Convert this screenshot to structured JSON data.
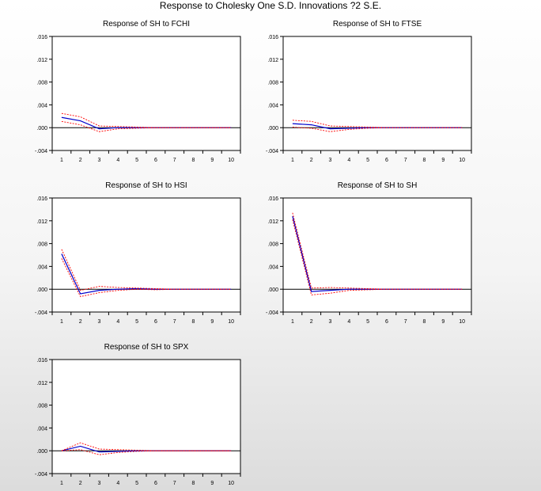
{
  "title": "Response to Cholesky One S.D. Innovations ?2 S.E.",
  "colors": {
    "response": "#0000cc",
    "band": "#ff0000",
    "zero": "#000000"
  },
  "chart_data": [
    {
      "type": "line",
      "title": "Response of SH to FCHI",
      "x": [
        1,
        2,
        3,
        4,
        5,
        6,
        7,
        8,
        9,
        10
      ],
      "ylim": [
        -0.004,
        0.016
      ],
      "yticks": [
        ".016",
        ".012",
        ".008",
        ".004",
        ".000",
        "-.004"
      ],
      "xticks": [
        "1",
        "2",
        "3",
        "4",
        "5",
        "6",
        "7",
        "8",
        "9",
        "10"
      ],
      "series": [
        {
          "role": "response",
          "values": [
            0.0018,
            0.0012,
            -0.0002,
            0.0,
            0.0,
            0.0,
            0.0,
            0.0,
            0.0,
            0.0
          ]
        },
        {
          "role": "upper",
          "values": [
            0.0025,
            0.0019,
            0.0003,
            0.0002,
            0.0001,
            0.0,
            0.0,
            0.0,
            0.0,
            0.0
          ]
        },
        {
          "role": "lower",
          "values": [
            0.0011,
            0.0005,
            -0.0007,
            -0.0002,
            -0.0001,
            0.0,
            0.0,
            0.0,
            0.0,
            0.0
          ]
        }
      ]
    },
    {
      "type": "line",
      "title": "Response of SH to FTSE",
      "x": [
        1,
        2,
        3,
        4,
        5,
        6,
        7,
        8,
        9,
        10
      ],
      "ylim": [
        -0.004,
        0.016
      ],
      "yticks": [
        ".016",
        ".012",
        ".008",
        ".004",
        ".000",
        "-.004"
      ],
      "xticks": [
        "1",
        "2",
        "3",
        "4",
        "5",
        "6",
        "7",
        "8",
        "9",
        "10"
      ],
      "series": [
        {
          "role": "response",
          "values": [
            0.0007,
            0.0005,
            -0.0002,
            -0.0001,
            0.0,
            0.0,
            0.0,
            0.0,
            0.0,
            0.0
          ]
        },
        {
          "role": "upper",
          "values": [
            0.0013,
            0.0011,
            0.0003,
            0.0002,
            0.0001,
            0.0,
            0.0,
            0.0,
            0.0,
            0.0
          ]
        },
        {
          "role": "lower",
          "values": [
            0.0001,
            -0.0001,
            -0.0007,
            -0.0003,
            -0.0001,
            0.0,
            0.0,
            0.0,
            0.0,
            0.0
          ]
        }
      ]
    },
    {
      "type": "line",
      "title": "Response of SH to HSI",
      "x": [
        1,
        2,
        3,
        4,
        5,
        6,
        7,
        8,
        9,
        10
      ],
      "ylim": [
        -0.004,
        0.016
      ],
      "yticks": [
        ".016",
        ".012",
        ".008",
        ".004",
        ".000",
        "-.004"
      ],
      "xticks": [
        "1",
        "2",
        "3",
        "4",
        "5",
        "6",
        "7",
        "8",
        "9",
        "10"
      ],
      "series": [
        {
          "role": "response",
          "values": [
            0.0062,
            -0.0008,
            -0.0002,
            0.0,
            0.0001,
            0.0,
            0.0,
            0.0,
            0.0,
            0.0
          ]
        },
        {
          "role": "upper",
          "values": [
            0.007,
            -0.0002,
            0.0005,
            0.0003,
            0.0002,
            0.0001,
            0.0,
            0.0,
            0.0,
            0.0
          ]
        },
        {
          "role": "lower",
          "values": [
            0.0054,
            -0.0013,
            -0.0006,
            -0.0002,
            0.0,
            -0.0001,
            0.0,
            0.0,
            0.0,
            0.0
          ]
        }
      ]
    },
    {
      "type": "line",
      "title": "Response of SH to SH",
      "x": [
        1,
        2,
        3,
        4,
        5,
        6,
        7,
        8,
        9,
        10
      ],
      "ylim": [
        -0.004,
        0.016
      ],
      "yticks": [
        ".016",
        ".012",
        ".008",
        ".004",
        ".000",
        "-.004"
      ],
      "xticks": [
        "1",
        "2",
        "3",
        "4",
        "5",
        "6",
        "7",
        "8",
        "9",
        "10"
      ],
      "series": [
        {
          "role": "response",
          "values": [
            0.0128,
            -0.0004,
            -0.0002,
            0.0,
            0.0,
            0.0,
            0.0,
            0.0,
            0.0,
            0.0
          ]
        },
        {
          "role": "upper",
          "values": [
            0.0134,
            0.0002,
            0.0003,
            0.0002,
            0.0001,
            0.0,
            0.0,
            0.0,
            0.0,
            0.0
          ]
        },
        {
          "role": "lower",
          "values": [
            0.0122,
            -0.001,
            -0.0007,
            -0.0002,
            -0.0001,
            0.0,
            0.0,
            0.0,
            0.0,
            0.0
          ]
        }
      ]
    },
    {
      "type": "line",
      "title": "Response of SH to SPX",
      "x": [
        1,
        2,
        3,
        4,
        5,
        6,
        7,
        8,
        9,
        10
      ],
      "ylim": [
        -0.004,
        0.016
      ],
      "yticks": [
        ".016",
        ".012",
        ".008",
        ".004",
        ".000",
        "-.004"
      ],
      "xticks": [
        "1",
        "2",
        "3",
        "4",
        "5",
        "6",
        "7",
        "8",
        "9",
        "10"
      ],
      "series": [
        {
          "role": "response",
          "values": [
            0.0,
            0.0008,
            -0.0002,
            -0.0001,
            0.0,
            0.0,
            0.0,
            0.0,
            0.0,
            0.0
          ]
        },
        {
          "role": "upper",
          "values": [
            0.0,
            0.0014,
            0.0003,
            0.0002,
            0.0001,
            0.0,
            0.0,
            0.0,
            0.0,
            0.0
          ]
        },
        {
          "role": "lower",
          "values": [
            0.0,
            0.0002,
            -0.0007,
            -0.0003,
            -0.0001,
            0.0,
            0.0,
            0.0,
            0.0,
            0.0
          ]
        }
      ]
    }
  ]
}
